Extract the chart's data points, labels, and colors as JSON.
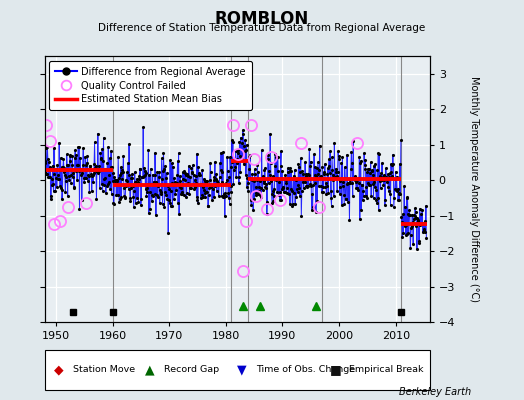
{
  "title": "ROMBLON",
  "subtitle": "Difference of Station Temperature Data from Regional Average",
  "ylabel": "Monthly Temperature Anomaly Difference (°C)",
  "watermark": "Berkeley Earth",
  "xlim": [
    1948,
    2016
  ],
  "ylim": [
    -4,
    3.5
  ],
  "yticks": [
    -4,
    -3,
    -2,
    -1,
    0,
    1,
    2,
    3
  ],
  "xticks": [
    1950,
    1960,
    1970,
    1980,
    1990,
    2000,
    2010
  ],
  "background_color": "#e0e8ec",
  "plot_bg_color": "#e8eef2",
  "grid_color": "white",
  "segment_biases": [
    {
      "start": 1948.0,
      "end": 1960.0,
      "bias": 0.28
    },
    {
      "start": 1960.0,
      "end": 1981.0,
      "bias": -0.13
    },
    {
      "start": 1981.0,
      "end": 1984.0,
      "bias": 0.55
    },
    {
      "start": 1984.0,
      "end": 1997.0,
      "bias": 0.02
    },
    {
      "start": 1997.0,
      "end": 2011.0,
      "bias": 0.02
    },
    {
      "start": 2011.0,
      "end": 2015.5,
      "bias": -1.25
    }
  ],
  "vertical_lines": [
    1960.0,
    1981.0,
    1984.0,
    1997.0,
    2011.0
  ],
  "empirical_breaks": [
    1953,
    1960,
    2011
  ],
  "record_gaps": [
    1983,
    1986,
    1996
  ],
  "qc_failed_approx": [
    [
      1948.3,
      1.55
    ],
    [
      1948.9,
      1.1
    ],
    [
      1949.7,
      -1.25
    ],
    [
      1950.8,
      -1.15
    ],
    [
      1952.2,
      -0.75
    ],
    [
      1955.3,
      -0.65
    ],
    [
      1981.3,
      1.55
    ],
    [
      1982.1,
      0.75
    ],
    [
      1983.1,
      -2.55
    ],
    [
      1983.6,
      -1.15
    ],
    [
      1984.4,
      1.55
    ],
    [
      1984.9,
      0.6
    ],
    [
      1985.4,
      -0.45
    ],
    [
      1987.2,
      -0.8
    ],
    [
      1988.0,
      0.65
    ],
    [
      1989.5,
      -0.55
    ],
    [
      1993.2,
      1.05
    ],
    [
      1996.5,
      -0.75
    ],
    [
      2003.2,
      1.05
    ]
  ],
  "seed": 42,
  "noise_std": 0.42
}
